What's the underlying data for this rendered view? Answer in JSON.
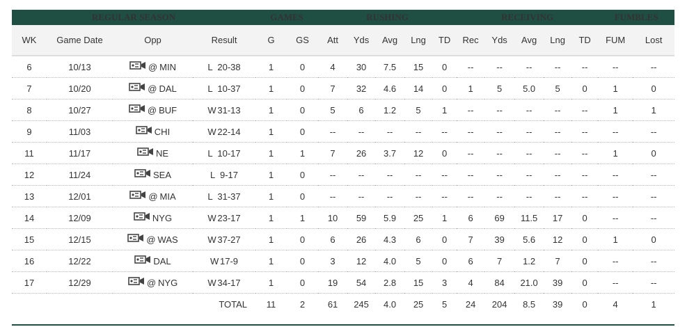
{
  "groups": {
    "regular": "REGULAR SEASON",
    "games": "GAMES",
    "rushing": "RUSHING",
    "receiving": "RECEIVING",
    "fumbles": "FUMBLES"
  },
  "columns": [
    "WK",
    "Game Date",
    "Opp",
    "Result",
    "G",
    "GS",
    "Att",
    "Yds",
    "Avg",
    "Lng",
    "TD",
    "Rec",
    "Yds",
    "Avg",
    "Lng",
    "TD",
    "FUM",
    "Lost"
  ],
  "rows": [
    {
      "wk": "6",
      "date": "10/13",
      "at": "@",
      "opp": "MIN",
      "wl": "L",
      "score": "20-38",
      "g": "1",
      "gs": "0",
      "ratt": "4",
      "ryds": "30",
      "ravg": "7.5",
      "rlng": "15",
      "rtd": "0",
      "rec": "--",
      "cyds": "--",
      "cavg": "--",
      "clng": "--",
      "ctd": "--",
      "fum": "--",
      "lost": "--"
    },
    {
      "wk": "7",
      "date": "10/20",
      "at": "@",
      "opp": "DAL",
      "wl": "L",
      "score": "10-37",
      "g": "1",
      "gs": "0",
      "ratt": "7",
      "ryds": "32",
      "ravg": "4.6",
      "rlng": "14",
      "rtd": "0",
      "rec": "1",
      "cyds": "5",
      "cavg": "5.0",
      "clng": "5",
      "ctd": "0",
      "fum": "1",
      "lost": "0"
    },
    {
      "wk": "8",
      "date": "10/27",
      "at": "@",
      "opp": "BUF",
      "wl": "W",
      "score": "31-13",
      "g": "1",
      "gs": "0",
      "ratt": "5",
      "ryds": "6",
      "ravg": "1.2",
      "rlng": "5",
      "rtd": "1",
      "rec": "--",
      "cyds": "--",
      "cavg": "--",
      "clng": "--",
      "ctd": "--",
      "fum": "1",
      "lost": "1"
    },
    {
      "wk": "9",
      "date": "11/03",
      "at": "",
      "opp": "CHI",
      "wl": "W",
      "score": "22-14",
      "g": "1",
      "gs": "0",
      "ratt": "--",
      "ryds": "--",
      "ravg": "--",
      "rlng": "--",
      "rtd": "--",
      "rec": "--",
      "cyds": "--",
      "cavg": "--",
      "clng": "--",
      "ctd": "--",
      "fum": "--",
      "lost": "--"
    },
    {
      "wk": "11",
      "date": "11/17",
      "at": "",
      "opp": "NE",
      "wl": "L",
      "score": "10-17",
      "g": "1",
      "gs": "1",
      "ratt": "7",
      "ryds": "26",
      "ravg": "3.7",
      "rlng": "12",
      "rtd": "0",
      "rec": "--",
      "cyds": "--",
      "cavg": "--",
      "clng": "--",
      "ctd": "--",
      "fum": "1",
      "lost": "0"
    },
    {
      "wk": "12",
      "date": "11/24",
      "at": "",
      "opp": "SEA",
      "wl": "L",
      "score": "9-17",
      "g": "1",
      "gs": "0",
      "ratt": "--",
      "ryds": "--",
      "ravg": "--",
      "rlng": "--",
      "rtd": "--",
      "rec": "--",
      "cyds": "--",
      "cavg": "--",
      "clng": "--",
      "ctd": "--",
      "fum": "--",
      "lost": "--"
    },
    {
      "wk": "13",
      "date": "12/01",
      "at": "@",
      "opp": "MIA",
      "wl": "L",
      "score": "31-37",
      "g": "1",
      "gs": "0",
      "ratt": "--",
      "ryds": "--",
      "ravg": "--",
      "rlng": "--",
      "rtd": "--",
      "rec": "--",
      "cyds": "--",
      "cavg": "--",
      "clng": "--",
      "ctd": "--",
      "fum": "--",
      "lost": "--"
    },
    {
      "wk": "14",
      "date": "12/09",
      "at": "",
      "opp": "NYG",
      "wl": "W",
      "score": "23-17",
      "g": "1",
      "gs": "1",
      "ratt": "10",
      "ryds": "59",
      "ravg": "5.9",
      "rlng": "25",
      "rtd": "1",
      "rec": "6",
      "cyds": "69",
      "cavg": "11.5",
      "clng": "17",
      "ctd": "0",
      "fum": "--",
      "lost": "--"
    },
    {
      "wk": "15",
      "date": "12/15",
      "at": "@",
      "opp": "WAS",
      "wl": "W",
      "score": "37-27",
      "g": "1",
      "gs": "0",
      "ratt": "6",
      "ryds": "26",
      "ravg": "4.3",
      "rlng": "6",
      "rtd": "0",
      "rec": "7",
      "cyds": "39",
      "cavg": "5.6",
      "clng": "12",
      "ctd": "0",
      "fum": "1",
      "lost": "0"
    },
    {
      "wk": "16",
      "date": "12/22",
      "at": "",
      "opp": "DAL",
      "wl": "W",
      "score": "17-9",
      "g": "1",
      "gs": "0",
      "ratt": "3",
      "ryds": "12",
      "ravg": "4.0",
      "rlng": "5",
      "rtd": "0",
      "rec": "6",
      "cyds": "7",
      "cavg": "1.2",
      "clng": "7",
      "ctd": "0",
      "fum": "--",
      "lost": "--"
    },
    {
      "wk": "17",
      "date": "12/29",
      "at": "@",
      "opp": "NYG",
      "wl": "W",
      "score": "34-17",
      "g": "1",
      "gs": "0",
      "ratt": "19",
      "ryds": "54",
      "ravg": "2.8",
      "rlng": "15",
      "rtd": "3",
      "rec": "4",
      "cyds": "84",
      "cavg": "21.0",
      "clng": "39",
      "ctd": "0",
      "fum": "--",
      "lost": "--"
    }
  ],
  "total": {
    "label": "TOTAL",
    "g": "11",
    "gs": "2",
    "ratt": "61",
    "ryds": "245",
    "ravg": "4.0",
    "rlng": "25",
    "rtd": "5",
    "rec": "24",
    "cyds": "204",
    "cavg": "8.5",
    "clng": "39",
    "ctd": "0",
    "fum": "4",
    "lost": "1"
  },
  "icons": {
    "video": "video-camera-icon"
  }
}
